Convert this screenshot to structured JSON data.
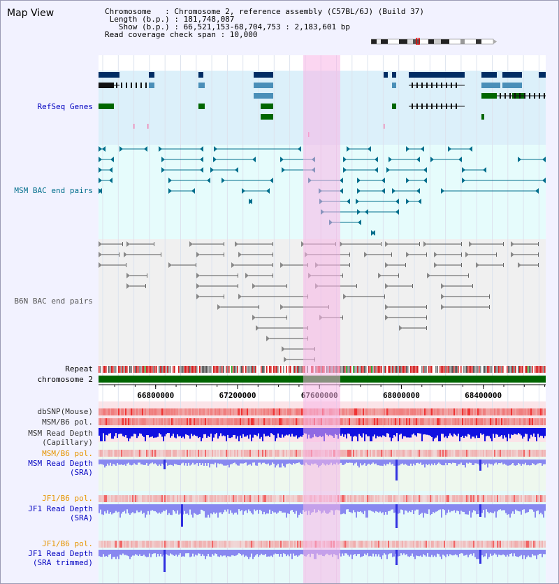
{
  "title": "Map View",
  "info": {
    "chromosome_line": "Chromosome   : Chromosome 2, reference assembly (C57BL/6J) (Build 37)",
    "length_line": " Length (b.p.) : 181,748,087",
    "show_line": "   Show (b.p.) : 66,521,153-68,704,753 : 2,183,601 bp",
    "coverage_line": "Read coverage check span : 10,000"
  },
  "view": {
    "start_bp": 66521153,
    "end_bp": 68704753,
    "highlight_bp": [
      67521153,
      67701153
    ]
  },
  "axis": {
    "ticks": [
      {
        "bp": 66800000,
        "label": "66800000"
      },
      {
        "bp": 67200000,
        "label": "67200000"
      },
      {
        "bp": 67600000,
        "label": "67600000"
      },
      {
        "bp": 68000000,
        "label": "68000000"
      },
      {
        "bp": 68400000,
        "label": "68400000"
      }
    ]
  },
  "tracks": {
    "refseq": {
      "label": "RefSeq Genes",
      "color": "#0000c0"
    },
    "msm_bac": {
      "label": "MSM BAC end pairs",
      "color": "#006e8c"
    },
    "b6n_bac": {
      "label": "B6N BAC end pairs",
      "color": "#555555"
    },
    "repeat": {
      "label": "Repeat",
      "color": "#000000"
    },
    "chromosome": {
      "label": "chromosome 2",
      "color": "#000000"
    },
    "dbsnp": {
      "label": "dbSNP(Mouse)",
      "color": "#333333"
    },
    "msm_b6_pol": {
      "label": "MSM/B6 pol.",
      "color": "#333333"
    },
    "msm_depth_cap": {
      "label1": "MSM Read Depth",
      "label2": "(Capillary)",
      "color": "#333333"
    },
    "msm_b6_pol_sra": {
      "label": "MSM/B6 pol.",
      "color": "#e69500"
    },
    "msm_depth_sra": {
      "label1": "MSM Read Depth",
      "label2": "(SRA)",
      "color": "#0000c0"
    },
    "jf1_b6_pol": {
      "label": "JF1/B6 pol.",
      "color": "#e69500"
    },
    "jf1_depth_sra": {
      "label1": "JF1 Read Depth",
      "label2": "(SRA)",
      "color": "#0000c0"
    },
    "jf1_b6_pol_trim": {
      "label": "JF1/B6 pol.",
      "color": "#e69500"
    },
    "jf1_depth_trim": {
      "label1": "JF1 Read Depth",
      "label2": "(SRA trimmed)",
      "color": "#0000c0"
    }
  },
  "colors": {
    "refseq_bg": "#dcf0fa",
    "refseq_blue": "#002d64",
    "refseq_lightblue": "#4a8fb8",
    "refseq_green": "#006600",
    "msm_bg": "#e6fcfc",
    "b6n_bg": "#f0f0f0",
    "msm_line": "#006e8c",
    "b6n_line": "#555555",
    "chrom_bar": "#006400",
    "pol_red": "#e83030",
    "depth_cap": "#1010e0",
    "depth_sra": "#8888f0"
  }
}
